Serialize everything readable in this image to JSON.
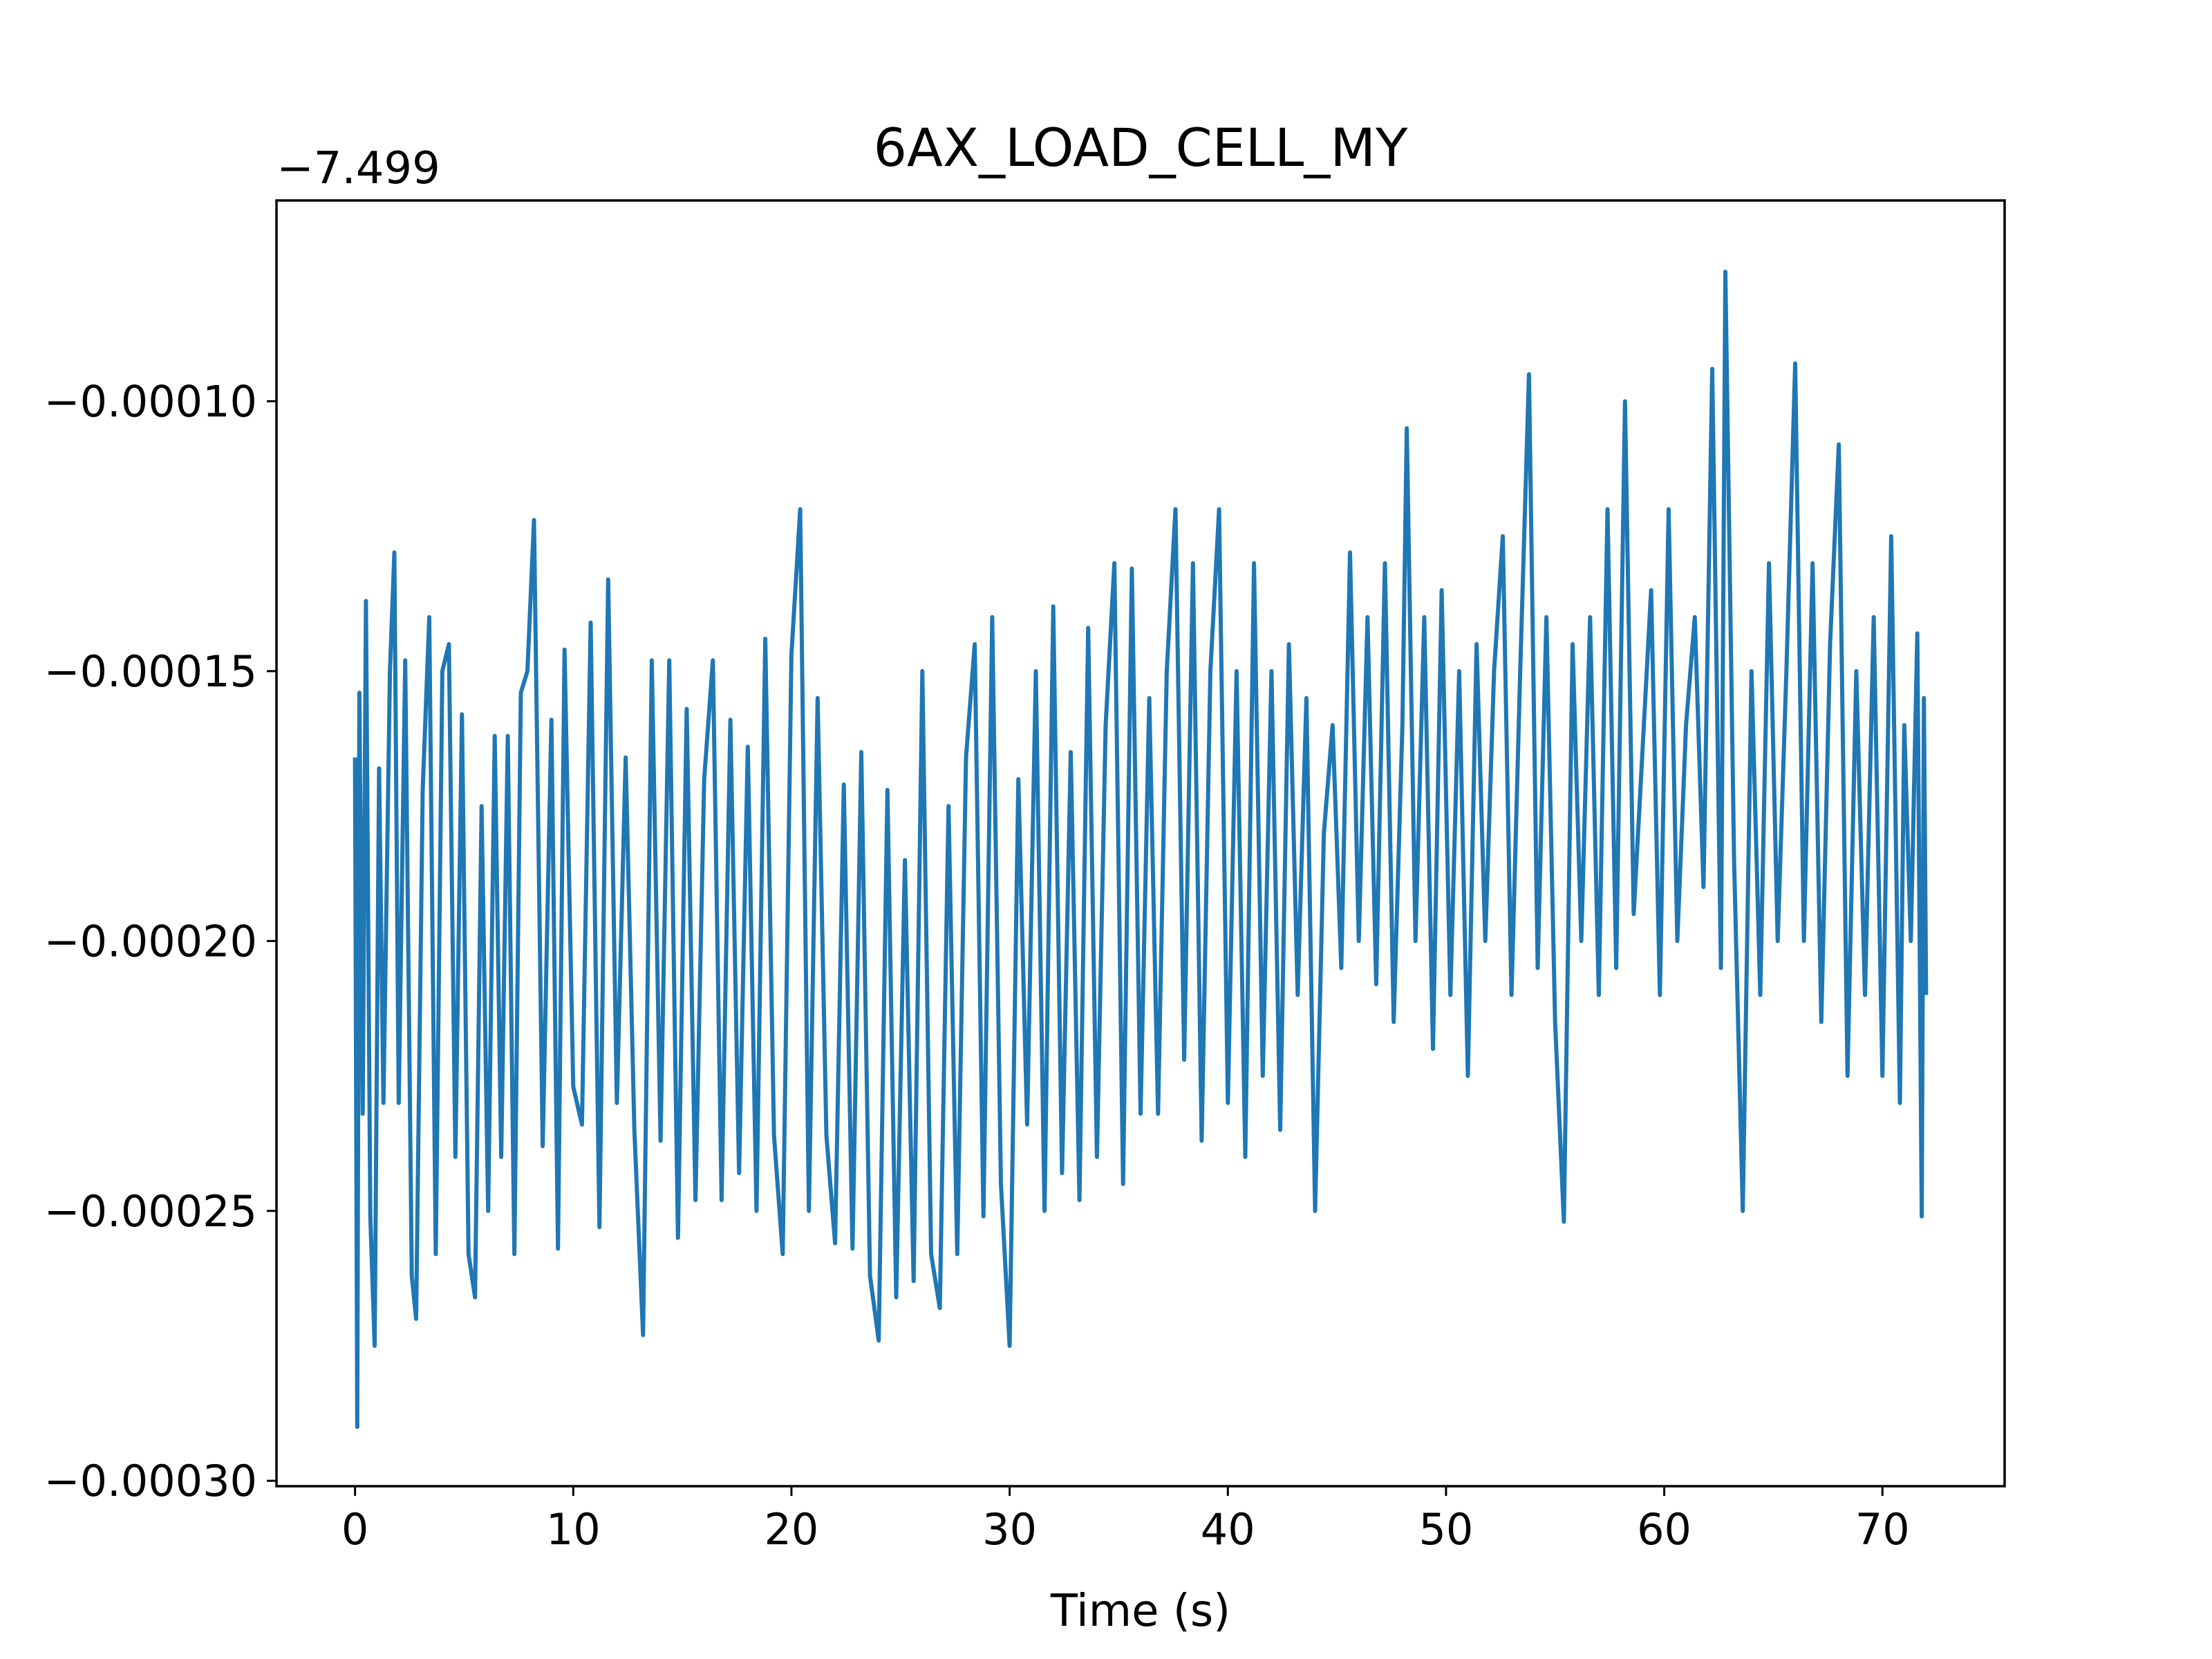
{
  "chart_data": {
    "type": "line",
    "title": "6AX_LOAD_CELL_MY",
    "xlabel": "Time (s)",
    "ylabel": "",
    "y_offset_label": "−7.499",
    "xlim": [
      -3.6,
      75.6
    ],
    "ylim": [
      -0.000301,
      -6.28e-05
    ],
    "xticks": [
      0,
      10,
      20,
      30,
      40,
      50,
      60,
      70
    ],
    "xtick_labels": [
      "0",
      "10",
      "20",
      "30",
      "40",
      "50",
      "60",
      "70"
    ],
    "yticks": [
      -0.0003,
      -0.00025,
      -0.0002,
      -0.00015,
      -0.0001
    ],
    "ytick_labels": [
      "−0.00030",
      "−0.00025",
      "−0.00020",
      "−0.00015",
      "−0.00010"
    ],
    "grid": false,
    "line_color": "#1f77b4",
    "series": [
      {
        "points": [
          [
            0.0,
            -0.000166
          ],
          [
            0.1,
            -0.00029
          ],
          [
            0.2,
            -0.000154
          ],
          [
            0.35,
            -0.000232
          ],
          [
            0.5,
            -0.000137
          ],
          [
            0.7,
            -0.000251
          ],
          [
            0.9,
            -0.000275
          ],
          [
            1.1,
            -0.000168
          ],
          [
            1.3,
            -0.00023
          ],
          [
            1.6,
            -0.00015
          ],
          [
            1.8,
            -0.000128
          ],
          [
            2.0,
            -0.00023
          ],
          [
            2.3,
            -0.000148
          ],
          [
            2.6,
            -0.000262
          ],
          [
            2.8,
            -0.00027
          ],
          [
            3.1,
            -0.000172
          ],
          [
            3.4,
            -0.00014
          ],
          [
            3.7,
            -0.000258
          ],
          [
            4.0,
            -0.00015
          ],
          [
            4.3,
            -0.000145
          ],
          [
            4.6,
            -0.00024
          ],
          [
            4.9,
            -0.000158
          ],
          [
            5.2,
            -0.000258
          ],
          [
            5.5,
            -0.000266
          ],
          [
            5.8,
            -0.000175
          ],
          [
            6.1,
            -0.00025
          ],
          [
            6.4,
            -0.000162
          ],
          [
            6.7,
            -0.00024
          ],
          [
            7.0,
            -0.000162
          ],
          [
            7.3,
            -0.000258
          ],
          [
            7.6,
            -0.000154
          ],
          [
            7.9,
            -0.00015
          ],
          [
            8.2,
            -0.000122
          ],
          [
            8.6,
            -0.000238
          ],
          [
            9.0,
            -0.000159
          ],
          [
            9.3,
            -0.000257
          ],
          [
            9.6,
            -0.000146
          ],
          [
            10.0,
            -0.000227
          ],
          [
            10.4,
            -0.000234
          ],
          [
            10.8,
            -0.000141
          ],
          [
            11.2,
            -0.000253
          ],
          [
            11.6,
            -0.000133
          ],
          [
            12.0,
            -0.00023
          ],
          [
            12.4,
            -0.000166
          ],
          [
            12.8,
            -0.000235
          ],
          [
            13.2,
            -0.000273
          ],
          [
            13.6,
            -0.000148
          ],
          [
            14.0,
            -0.000237
          ],
          [
            14.4,
            -0.000148
          ],
          [
            14.8,
            -0.000255
          ],
          [
            15.2,
            -0.000157
          ],
          [
            15.6,
            -0.000248
          ],
          [
            16.0,
            -0.00017
          ],
          [
            16.4,
            -0.000148
          ],
          [
            16.8,
            -0.000248
          ],
          [
            17.2,
            -0.000159
          ],
          [
            17.6,
            -0.000243
          ],
          [
            18.0,
            -0.000164
          ],
          [
            18.4,
            -0.00025
          ],
          [
            18.8,
            -0.000144
          ],
          [
            19.2,
            -0.000236
          ],
          [
            19.6,
            -0.000258
          ],
          [
            20.0,
            -0.000147
          ],
          [
            20.4,
            -0.00012
          ],
          [
            20.8,
            -0.00025
          ],
          [
            21.2,
            -0.000155
          ],
          [
            21.6,
            -0.000236
          ],
          [
            22.0,
            -0.000256
          ],
          [
            22.4,
            -0.000171
          ],
          [
            22.8,
            -0.000257
          ],
          [
            23.2,
            -0.000165
          ],
          [
            23.6,
            -0.000262
          ],
          [
            24.0,
            -0.000274
          ],
          [
            24.4,
            -0.000172
          ],
          [
            24.8,
            -0.000266
          ],
          [
            25.2,
            -0.000185
          ],
          [
            25.6,
            -0.000263
          ],
          [
            26.0,
            -0.00015
          ],
          [
            26.4,
            -0.000258
          ],
          [
            26.8,
            -0.000268
          ],
          [
            27.2,
            -0.000175
          ],
          [
            27.6,
            -0.000258
          ],
          [
            28.0,
            -0.000166
          ],
          [
            28.4,
            -0.000145
          ],
          [
            28.8,
            -0.000251
          ],
          [
            29.2,
            -0.00014
          ],
          [
            29.6,
            -0.000245
          ],
          [
            30.0,
            -0.000275
          ],
          [
            30.4,
            -0.00017
          ],
          [
            30.8,
            -0.000234
          ],
          [
            31.2,
            -0.00015
          ],
          [
            31.6,
            -0.00025
          ],
          [
            32.0,
            -0.000138
          ],
          [
            32.4,
            -0.000243
          ],
          [
            32.8,
            -0.000165
          ],
          [
            33.2,
            -0.000248
          ],
          [
            33.6,
            -0.000142
          ],
          [
            34.0,
            -0.00024
          ],
          [
            34.4,
            -0.00016
          ],
          [
            34.8,
            -0.00013
          ],
          [
            35.2,
            -0.000245
          ],
          [
            35.6,
            -0.000131
          ],
          [
            36.0,
            -0.000232
          ],
          [
            36.4,
            -0.000155
          ],
          [
            36.8,
            -0.000232
          ],
          [
            37.2,
            -0.00015
          ],
          [
            37.6,
            -0.00012
          ],
          [
            38.0,
            -0.000222
          ],
          [
            38.4,
            -0.00013
          ],
          [
            38.8,
            -0.000237
          ],
          [
            39.2,
            -0.00015
          ],
          [
            39.6,
            -0.00012
          ],
          [
            40.0,
            -0.00023
          ],
          [
            40.4,
            -0.00015
          ],
          [
            40.8,
            -0.00024
          ],
          [
            41.2,
            -0.00013
          ],
          [
            41.6,
            -0.000225
          ],
          [
            42.0,
            -0.00015
          ],
          [
            42.4,
            -0.000235
          ],
          [
            42.8,
            -0.000145
          ],
          [
            43.2,
            -0.00021
          ],
          [
            43.6,
            -0.000155
          ],
          [
            44.0,
            -0.00025
          ],
          [
            44.4,
            -0.00018
          ],
          [
            44.8,
            -0.00016
          ],
          [
            45.2,
            -0.000205
          ],
          [
            45.6,
            -0.000128
          ],
          [
            46.0,
            -0.0002
          ],
          [
            46.4,
            -0.00014
          ],
          [
            46.8,
            -0.000208
          ],
          [
            47.2,
            -0.00013
          ],
          [
            47.6,
            -0.000215
          ],
          [
            48.0,
            -0.00016
          ],
          [
            48.2,
            -0.000105
          ],
          [
            48.6,
            -0.0002
          ],
          [
            49.0,
            -0.00014
          ],
          [
            49.4,
            -0.00022
          ],
          [
            49.8,
            -0.000135
          ],
          [
            50.2,
            -0.00021
          ],
          [
            50.6,
            -0.00015
          ],
          [
            51.0,
            -0.000225
          ],
          [
            51.4,
            -0.000145
          ],
          [
            51.8,
            -0.0002
          ],
          [
            52.2,
            -0.00015
          ],
          [
            52.6,
            -0.000125
          ],
          [
            53.0,
            -0.00021
          ],
          [
            53.4,
            -0.00015
          ],
          [
            53.8,
            -9.5e-05
          ],
          [
            54.2,
            -0.000205
          ],
          [
            54.6,
            -0.00014
          ],
          [
            55.0,
            -0.000215
          ],
          [
            55.4,
            -0.000252
          ],
          [
            55.8,
            -0.000145
          ],
          [
            56.2,
            -0.0002
          ],
          [
            56.6,
            -0.00014
          ],
          [
            57.0,
            -0.00021
          ],
          [
            57.4,
            -0.00012
          ],
          [
            57.8,
            -0.000205
          ],
          [
            58.2,
            -0.0001
          ],
          [
            58.6,
            -0.000195
          ],
          [
            59.0,
            -0.000165
          ],
          [
            59.4,
            -0.000135
          ],
          [
            59.8,
            -0.00021
          ],
          [
            60.2,
            -0.00012
          ],
          [
            60.6,
            -0.0002
          ],
          [
            61.0,
            -0.00016
          ],
          [
            61.4,
            -0.00014
          ],
          [
            61.8,
            -0.00019
          ],
          [
            62.2,
            -9.4e-05
          ],
          [
            62.6,
            -0.000205
          ],
          [
            62.8,
            -7.6e-05
          ],
          [
            63.2,
            -0.000185
          ],
          [
            63.6,
            -0.00025
          ],
          [
            64.0,
            -0.00015
          ],
          [
            64.4,
            -0.00021
          ],
          [
            64.8,
            -0.00013
          ],
          [
            65.2,
            -0.0002
          ],
          [
            65.6,
            -0.00015
          ],
          [
            66.0,
            -9.3e-05
          ],
          [
            66.4,
            -0.0002
          ],
          [
            66.8,
            -0.00013
          ],
          [
            67.2,
            -0.000215
          ],
          [
            67.6,
            -0.000145
          ],
          [
            68.0,
            -0.000108
          ],
          [
            68.4,
            -0.000225
          ],
          [
            68.8,
            -0.00015
          ],
          [
            69.2,
            -0.00021
          ],
          [
            69.6,
            -0.00014
          ],
          [
            70.0,
            -0.000225
          ],
          [
            70.4,
            -0.000125
          ],
          [
            70.8,
            -0.00023
          ],
          [
            71.0,
            -0.00016
          ],
          [
            71.3,
            -0.0002
          ],
          [
            71.6,
            -0.000143
          ],
          [
            71.8,
            -0.000251
          ],
          [
            71.9,
            -0.000155
          ],
          [
            72.0,
            -0.00021
          ]
        ]
      }
    ]
  }
}
